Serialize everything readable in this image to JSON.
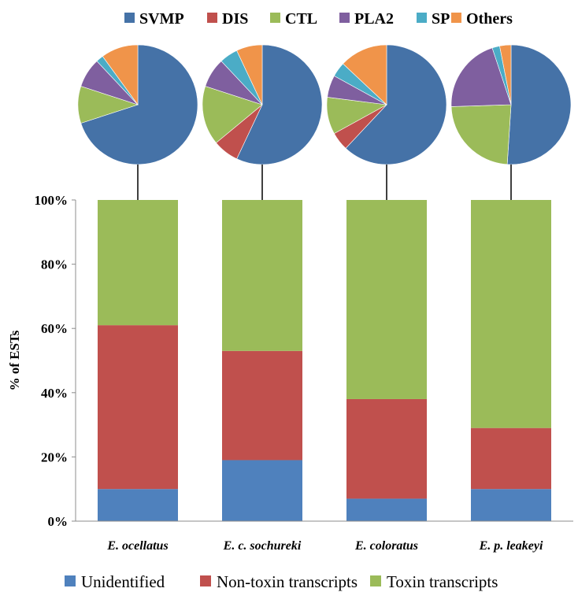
{
  "chart_data": [
    {
      "type": "pie",
      "categories": [
        "SVMP",
        "DIS",
        "CTL",
        "PLA2",
        "SP",
        "Others"
      ],
      "colors": [
        "#4572a7",
        "#c0504d",
        "#9bbb59",
        "#7f5f9f",
        "#4bacc6",
        "#f0944a"
      ],
      "legend_position": "top",
      "pies": [
        {
          "label": "E. ocellatus",
          "values": [
            70,
            0,
            10,
            8,
            2,
            10
          ]
        },
        {
          "label": "E. c. sochureki",
          "values": [
            57,
            7,
            16,
            8,
            5,
            7
          ]
        },
        {
          "label": "E. coloratus",
          "values": [
            62,
            5,
            10,
            6,
            4,
            13
          ]
        },
        {
          "label": "E. p. leakeyi",
          "values": [
            50,
            0,
            23,
            20,
            2,
            3
          ]
        }
      ]
    },
    {
      "type": "bar",
      "stacked": true,
      "categories": [
        "E. ocellatus",
        "E. c. sochureki",
        "E. coloratus",
        "E. p. leakeyi"
      ],
      "series": [
        {
          "name": "Unidentified",
          "color": "#4f81bd",
          "values": [
            10,
            19,
            7,
            10
          ]
        },
        {
          "name": "Non-toxin transcripts",
          "color": "#c0504d",
          "values": [
            51,
            34,
            31,
            19
          ]
        },
        {
          "name": "Toxin transcripts",
          "color": "#9bbb59",
          "values": [
            39,
            47,
            62,
            71
          ]
        }
      ],
      "ylabel": "% of ESTs",
      "ylim": [
        0,
        100
      ],
      "yticks": [
        "0%",
        "20%",
        "40%",
        "60%",
        "80%",
        "100%"
      ],
      "grid": false,
      "legend_position": "bottom"
    }
  ]
}
